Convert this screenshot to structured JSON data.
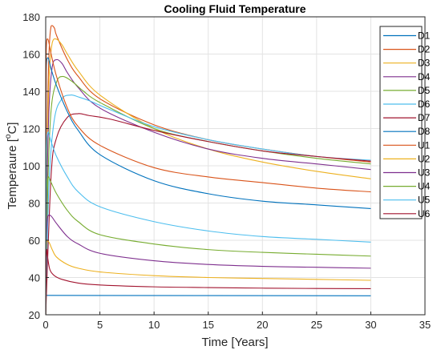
{
  "chart_data": {
    "type": "line",
    "title": "Cooling Fluid Temperature",
    "xlabel": "Time [Years]",
    "ylabel_main": "Temperaure [",
    "ylabel_sup": "o",
    "ylabel_end": "C]",
    "xlim": [
      0,
      35
    ],
    "ylim": [
      20,
      180
    ],
    "xticks": [
      0,
      5,
      10,
      15,
      20,
      25,
      30,
      35
    ],
    "yticks": [
      20,
      40,
      60,
      80,
      100,
      120,
      140,
      160,
      180
    ],
    "grid": true,
    "legend_position": "top-right",
    "series": [
      {
        "name": "D1",
        "color": "#0072BD",
        "curve": {
          "x": [
            0,
            0.2,
            30
          ],
          "y": [
            30.5,
            30.4,
            30.2
          ]
        }
      },
      {
        "name": "D2",
        "color": "#D95319",
        "curve": {
          "x": [
            0,
            0.05,
            0.15,
            0.3,
            0.5,
            0.8,
            1,
            2,
            3,
            5,
            10,
            15,
            20,
            25,
            30
          ],
          "y": [
            20,
            60,
            120,
            160,
            175,
            174,
            170,
            157,
            148,
            136,
            122,
            114,
            109,
            105,
            102
          ]
        }
      },
      {
        "name": "D3",
        "color": "#EDB120",
        "curve": {
          "x": [
            0,
            0.1,
            0.3,
            0.6,
            1,
            1.5,
            2,
            3,
            5,
            10,
            15,
            20,
            25,
            30
          ],
          "y": [
            20,
            90,
            145,
            166,
            168,
            165,
            160,
            151,
            138,
            120,
            109,
            102,
            97,
            93
          ]
        }
      },
      {
        "name": "D4",
        "color": "#7E2F8E",
        "curve": {
          "x": [
            0,
            0.1,
            0.3,
            0.6,
            1,
            1.5,
            2,
            3,
            5,
            10,
            15,
            20,
            25,
            30
          ],
          "y": [
            20,
            80,
            130,
            153,
            157,
            155,
            150,
            142,
            131,
            118,
            109,
            104,
            101,
            98
          ]
        }
      },
      {
        "name": "D5",
        "color": "#77AC30",
        "curve": {
          "x": [
            0,
            0.2,
            0.5,
            1,
            1.6,
            2.5,
            3.5,
            5,
            10,
            15,
            20,
            25,
            30
          ],
          "y": [
            20,
            90,
            130,
            145,
            148,
            145,
            140,
            134,
            120,
            113,
            108,
            104,
            101
          ]
        }
      },
      {
        "name": "D6",
        "color": "#4DBEEE",
        "curve": {
          "x": [
            0,
            0.3,
            0.8,
            1.5,
            2.3,
            3,
            4,
            6,
            10,
            15,
            20,
            25,
            30
          ],
          "y": [
            20,
            90,
            125,
            136,
            138,
            137,
            135,
            130,
            121,
            114,
            109,
            105,
            103
          ]
        }
      },
      {
        "name": "D7",
        "color": "#A2142F",
        "curve": {
          "x": [
            0,
            0.5,
            1,
            2,
            3,
            4,
            6,
            10,
            15,
            20,
            25,
            30
          ],
          "y": [
            20,
            95,
            115,
            126,
            128,
            127,
            125,
            119,
            113,
            108,
            105,
            102.5
          ]
        }
      },
      {
        "name": "D8",
        "color": "#0072BD",
        "curve": {
          "x": [
            0,
            0.05,
            0.2,
            0.5,
            1,
            2,
            3,
            5,
            10,
            15,
            20,
            25,
            30
          ],
          "y": [
            20,
            150,
            158,
            152,
            143,
            129,
            119,
            106,
            92,
            85,
            81,
            79,
            77
          ]
        }
      },
      {
        "name": "U1",
        "color": "#D95319",
        "curve": {
          "x": [
            0,
            0.05,
            0.2,
            0.5,
            1,
            2,
            3,
            5,
            10,
            15,
            20,
            25,
            30
          ],
          "y": [
            20,
            162,
            168,
            160,
            148,
            131,
            121,
            111,
            99,
            94,
            91,
            88,
            86
          ]
        }
      },
      {
        "name": "U2",
        "color": "#EDB120",
        "curve": {
          "x": [
            0,
            0.02,
            0.1,
            0.3,
            0.6,
            1,
            2,
            3,
            5,
            10,
            15,
            20,
            25,
            30
          ],
          "y": [
            20,
            44,
            59,
            59,
            55,
            51,
            47,
            45,
            43,
            41,
            40,
            39.5,
            39,
            38.5
          ]
        }
      },
      {
        "name": "U3",
        "color": "#7E2F8E",
        "curve": {
          "x": [
            0,
            0.05,
            0.2,
            0.5,
            1,
            2,
            3,
            5,
            10,
            15,
            20,
            25,
            30
          ],
          "y": [
            20,
            58,
            73,
            73,
            69,
            62,
            58,
            53,
            49,
            47,
            46,
            45.5,
            45
          ]
        }
      },
      {
        "name": "U4",
        "color": "#77AC30",
        "curve": {
          "x": [
            0,
            0.05,
            0.2,
            0.5,
            1,
            2,
            3,
            5,
            10,
            15,
            20,
            25,
            30
          ],
          "y": [
            20,
            78,
            94,
            91,
            85,
            76,
            70,
            63,
            58,
            55,
            53.5,
            52.5,
            51.5
          ]
        }
      },
      {
        "name": "U5",
        "color": "#4DBEEE",
        "curve": {
          "x": [
            0,
            0.05,
            0.2,
            0.5,
            1,
            2,
            3,
            5,
            10,
            15,
            20,
            25,
            30
          ],
          "y": [
            20,
            100,
            118,
            113,
            105,
            94,
            86,
            78,
            70,
            65,
            62,
            60.5,
            59
          ]
        }
      },
      {
        "name": "U6",
        "color": "#A2142F",
        "curve": {
          "x": [
            0,
            0.02,
            0.1,
            0.2,
            0.4,
            0.8,
            1.5,
            3,
            5,
            10,
            15,
            20,
            25,
            30
          ],
          "y": [
            20,
            42,
            55,
            50,
            44,
            41,
            39,
            37,
            36,
            35,
            34.6,
            34.3,
            34.1,
            34
          ]
        }
      }
    ]
  }
}
